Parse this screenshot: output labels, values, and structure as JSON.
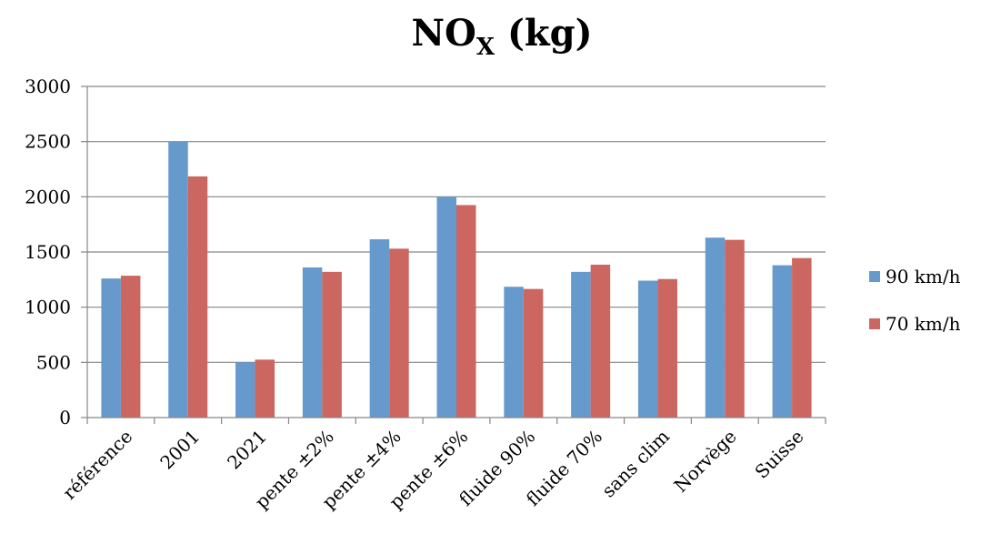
{
  "chart_data": {
    "type": "bar",
    "title": "NO",
    "title_subscript": "X",
    "title_suffix": " (kg)",
    "xlabel": "",
    "ylabel": "",
    "ylim": [
      0,
      3000
    ],
    "yticks": [
      0,
      500,
      1000,
      1500,
      2000,
      2500,
      3000
    ],
    "grid": true,
    "legend_position": "right",
    "categories": [
      "référence",
      "2001",
      "2021",
      "pente ±2%",
      "pente ±4%",
      "pente ±6%",
      "fluide 90%",
      "fluide 70%",
      "sans clim",
      "Norvège",
      "Suisse"
    ],
    "series": [
      {
        "name": "90 km/h",
        "color": "#6699CC",
        "values": [
          1260,
          2500,
          500,
          1360,
          1615,
          2000,
          1185,
          1320,
          1240,
          1630,
          1380
        ]
      },
      {
        "name": "70 km/h",
        "color": "#CC6660",
        "values": [
          1285,
          2185,
          525,
          1320,
          1530,
          1925,
          1165,
          1385,
          1255,
          1610,
          1445
        ]
      }
    ]
  }
}
